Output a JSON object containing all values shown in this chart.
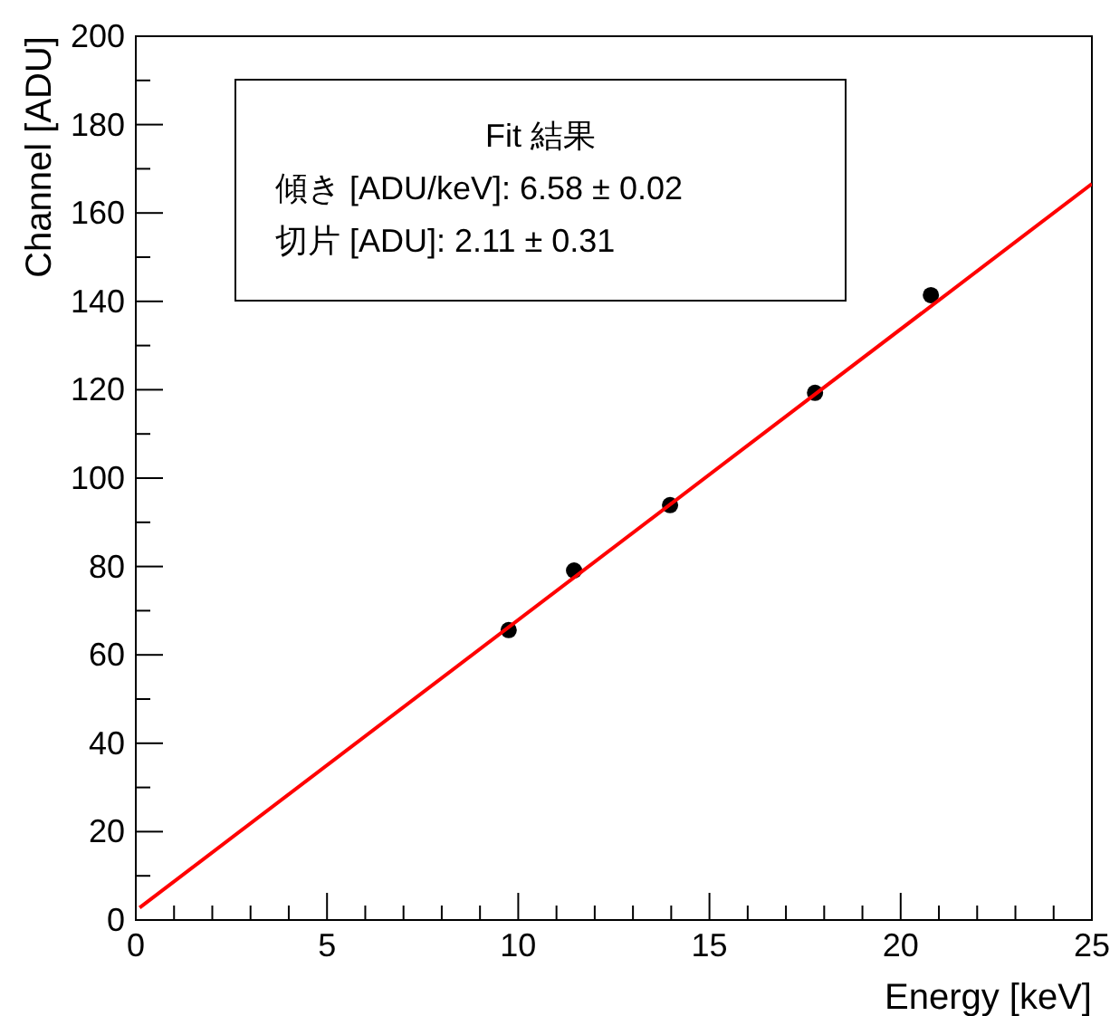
{
  "chart_data": {
    "type": "scatter",
    "xlabel": "Energy [keV]",
    "ylabel": "Channel [ADU]",
    "xlim": [
      0,
      25
    ],
    "ylim": [
      0,
      200
    ],
    "xticks": [
      0,
      5,
      10,
      15,
      20,
      25
    ],
    "yticks": [
      0,
      20,
      40,
      60,
      80,
      100,
      120,
      140,
      160,
      180,
      200
    ],
    "marker": "circle",
    "series": [
      {
        "color": "#000000",
        "x": [
          9.75,
          11.46,
          13.97,
          17.76,
          20.79
        ],
        "values": [
          65.6,
          79.1,
          93.9,
          119.3,
          141.4
        ]
      },
      {
        "type": "line",
        "color": "#ff0000",
        "marker": "none",
        "x": [
          0.1,
          25
        ],
        "values": [
          2.8,
          166.6
        ]
      }
    ],
    "annotations": [
      "Fit 結果",
      "傾き [ADU/keV]: 6.58 ± 0.02",
      "切片 [ADU]: 2.11 ± 0.31"
    ]
  }
}
